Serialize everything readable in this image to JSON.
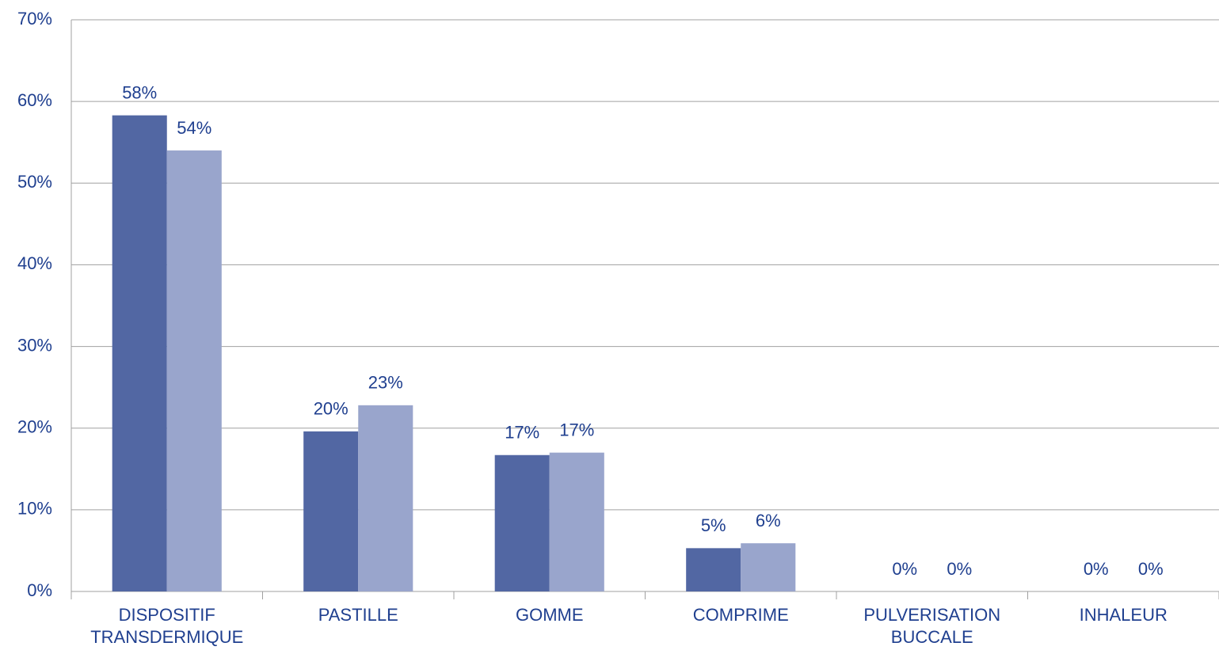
{
  "chart_data": {
    "type": "bar",
    "categories": [
      "DISPOSITIF TRANSDERMIQUE",
      "PASTILLE",
      "GOMME",
      "COMPRIME",
      "PULVERISATION BUCCALE",
      "INHALEUR"
    ],
    "series": [
      {
        "color": "#5267a3",
        "values": [
          58.3,
          19.6,
          16.7,
          5.3,
          0,
          0
        ],
        "value_labels": [
          "58%",
          "20%",
          "17%",
          "5%",
          "0%",
          "0%"
        ]
      },
      {
        "color": "#99a5cc",
        "values": [
          54.0,
          22.8,
          17.0,
          5.9,
          0,
          0
        ],
        "value_labels": [
          "54%",
          "23%",
          "17%",
          "6%",
          "0%",
          "0%"
        ]
      }
    ],
    "ylim": [
      0,
      70
    ],
    "yticks": [
      {
        "value": 0,
        "label": "0%"
      },
      {
        "value": 10,
        "label": "10%"
      },
      {
        "value": 20,
        "label": "20%"
      },
      {
        "value": 30,
        "label": "30%"
      },
      {
        "value": 40,
        "label": "40%"
      },
      {
        "value": 50,
        "label": "50%"
      },
      {
        "value": 60,
        "label": "60%"
      },
      {
        "value": 70,
        "label": "70%"
      }
    ],
    "grid": true
  }
}
